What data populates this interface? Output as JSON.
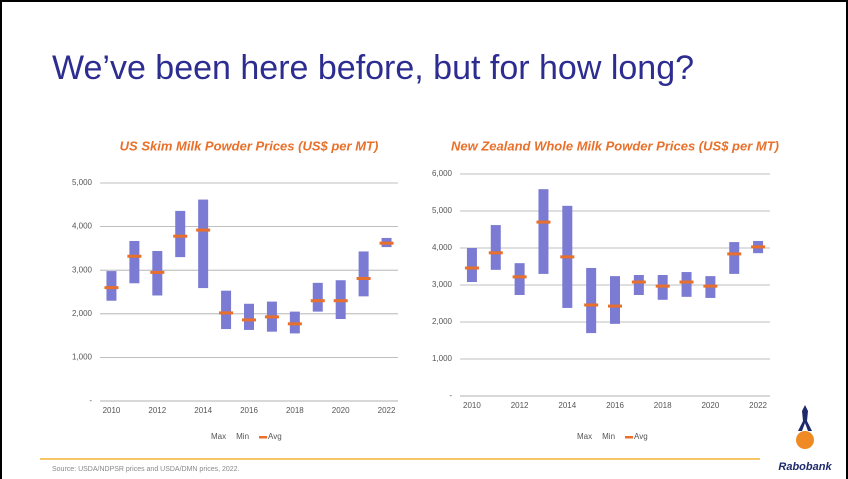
{
  "slide": {
    "title": "We’ve been here before, but for how long?",
    "source": "Source: USDA/NDPSR prices and USDA/DMN prices, 2022.",
    "logo": "Rabobank"
  },
  "chart_data": [
    {
      "type": "range",
      "title": "US Skim Milk Powder Prices (US$ per MT)",
      "color": "#7b7bd3",
      "x": [
        2010,
        2011,
        2012,
        2013,
        2014,
        2015,
        2016,
        2017,
        2018,
        2019,
        2020,
        2021,
        2022
      ],
      "series": [
        {
          "name": "Max",
          "values": [
            2980,
            3670,
            3440,
            4360,
            4620,
            2530,
            2230,
            2280,
            2050,
            2710,
            2770,
            3430,
            3740
          ]
        },
        {
          "name": "Min",
          "values": [
            2300,
            2700,
            2420,
            3300,
            2590,
            1650,
            1630,
            1590,
            1550,
            2050,
            1880,
            2400,
            3530
          ]
        },
        {
          "name": "Avg",
          "color": "#e8702a",
          "values": [
            2600,
            3320,
            2950,
            3780,
            3920,
            2020,
            1860,
            1930,
            1770,
            2300,
            2300,
            2810,
            3620
          ]
        }
      ],
      "xlim": [
        2009.5,
        2022.5
      ],
      "xticks": [
        2010,
        2012,
        2014,
        2016,
        2018,
        2020,
        2022
      ],
      "ylim": [
        0,
        5000
      ],
      "yticks": [
        {
          "value": 0,
          "label": "-"
        },
        {
          "value": 1000,
          "label": "1,000"
        },
        {
          "value": 2000,
          "label": "2,000"
        },
        {
          "value": 3000,
          "label": "3,000"
        },
        {
          "value": 4000,
          "label": "4,000"
        },
        {
          "value": 5000,
          "label": "5,000"
        }
      ],
      "grid": true,
      "legend": "bottom"
    },
    {
      "type": "range",
      "title": "New Zealand Whole Milk Powder Prices (US$ per MT)",
      "color": "#7b7bd3",
      "x": [
        2010,
        2011,
        2012,
        2013,
        2014,
        2015,
        2016,
        2017,
        2018,
        2019,
        2020,
        2021,
        2022
      ],
      "series": [
        {
          "name": "Max",
          "values": [
            4000,
            4620,
            3590,
            5590,
            5140,
            3460,
            3240,
            3270,
            3270,
            3350,
            3240,
            4160,
            4190
          ]
        },
        {
          "name": "Min",
          "values": [
            3080,
            3410,
            2730,
            3300,
            2380,
            1700,
            1950,
            2730,
            2600,
            2680,
            2650,
            3300,
            3860
          ]
        },
        {
          "name": "Avg",
          "color": "#e8702a",
          "values": [
            3460,
            3870,
            3220,
            4700,
            3760,
            2460,
            2430,
            3080,
            2970,
            3080,
            2970,
            3840,
            4030
          ]
        }
      ],
      "xlim": [
        2009.5,
        2022.5
      ],
      "xticks": [
        2010,
        2012,
        2014,
        2016,
        2018,
        2020,
        2022
      ],
      "ylim": [
        0,
        6000
      ],
      "yticks": [
        {
          "value": 0,
          "label": "-"
        },
        {
          "value": 1000,
          "label": "1,000"
        },
        {
          "value": 2000,
          "label": "2,000"
        },
        {
          "value": 3000,
          "label": "3,000"
        },
        {
          "value": 4000,
          "label": "4,000"
        },
        {
          "value": 5000,
          "label": "5,000"
        },
        {
          "value": 6000,
          "label": "6,000"
        }
      ],
      "grid": true,
      "legend": "bottom"
    }
  ]
}
